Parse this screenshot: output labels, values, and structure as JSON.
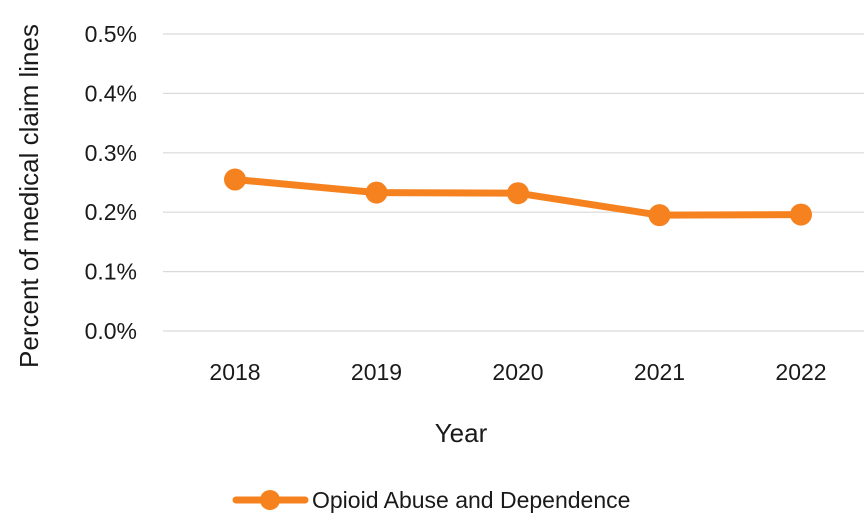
{
  "chart_data": {
    "type": "line",
    "title": "",
    "xlabel": "Year",
    "ylabel": "Percent of medical claim lines",
    "categories": [
      "2018",
      "2019",
      "2020",
      "2021",
      "2022"
    ],
    "series": [
      {
        "name": "Opioid Abuse and Dependence",
        "values": [
          0.255,
          0.233,
          0.232,
          0.195,
          0.196
        ],
        "color": "#F5821F"
      }
    ],
    "ylim": [
      0,
      0.5
    ],
    "yticks": [
      0.0,
      0.1,
      0.2,
      0.3,
      0.4,
      0.5
    ],
    "ytick_labels": [
      "0.0%",
      "0.1%",
      "0.2%",
      "0.3%",
      "0.4%",
      "0.5%"
    ],
    "grid": true,
    "legend_position": "bottom"
  }
}
